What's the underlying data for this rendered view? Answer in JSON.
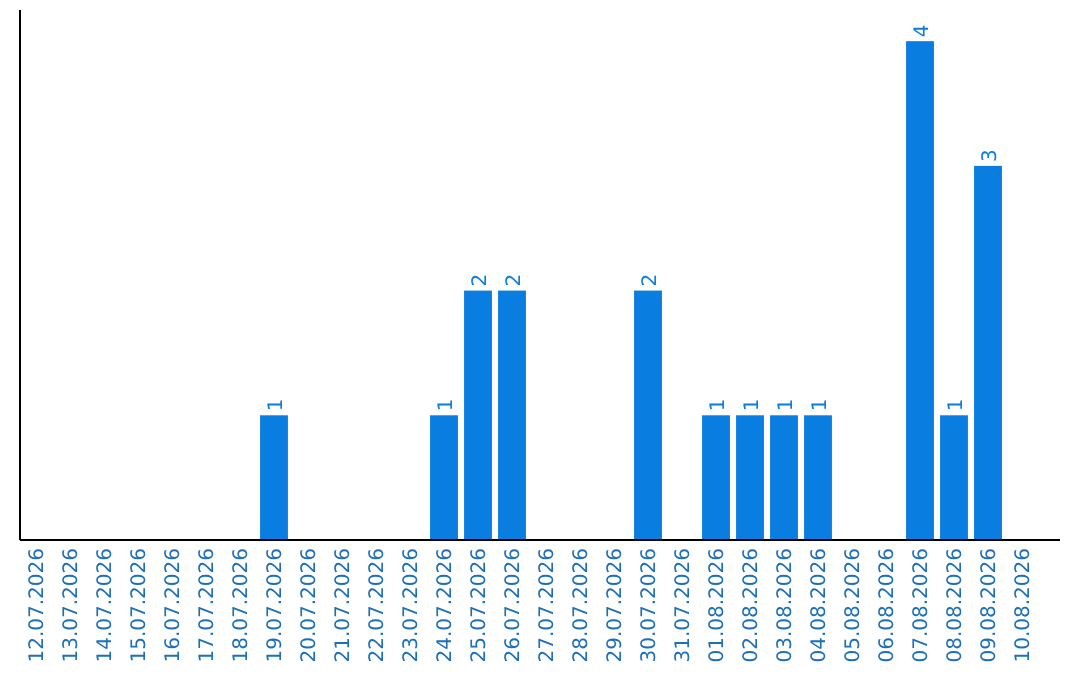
{
  "chart_data": {
    "type": "bar",
    "categories": [
      "12.07.2026",
      "13.07.2026",
      "14.07.2026",
      "15.07.2026",
      "16.07.2026",
      "17.07.2026",
      "18.07.2026",
      "19.07.2026",
      "20.07.2026",
      "21.07.2026",
      "22.07.2026",
      "23.07.2026",
      "24.07.2026",
      "25.07.2026",
      "26.07.2026",
      "27.07.2026",
      "28.07.2026",
      "29.07.2026",
      "30.07.2026",
      "31.07.2026",
      "01.08.2026",
      "02.08.2026",
      "03.08.2026",
      "04.08.2026",
      "05.08.2026",
      "06.08.2026",
      "07.08.2026",
      "08.08.2026",
      "09.08.2026",
      "10.08.2026"
    ],
    "values": [
      0,
      0,
      0,
      0,
      0,
      0,
      0,
      1,
      0,
      0,
      0,
      0,
      1,
      2,
      2,
      0,
      0,
      0,
      2,
      0,
      1,
      1,
      1,
      1,
      0,
      0,
      4,
      1,
      3,
      0
    ],
    "value_labels": [
      null,
      null,
      null,
      null,
      null,
      null,
      null,
      "1",
      null,
      null,
      null,
      null,
      "1",
      "2",
      "2",
      null,
      null,
      null,
      "2",
      null,
      "1",
      "1",
      "1",
      "1",
      null,
      null,
      "4",
      "1",
      "3",
      null
    ],
    "color": "#0a7ee0",
    "ylim": [
      0,
      4.25
    ],
    "tick_labels": "x"
  }
}
